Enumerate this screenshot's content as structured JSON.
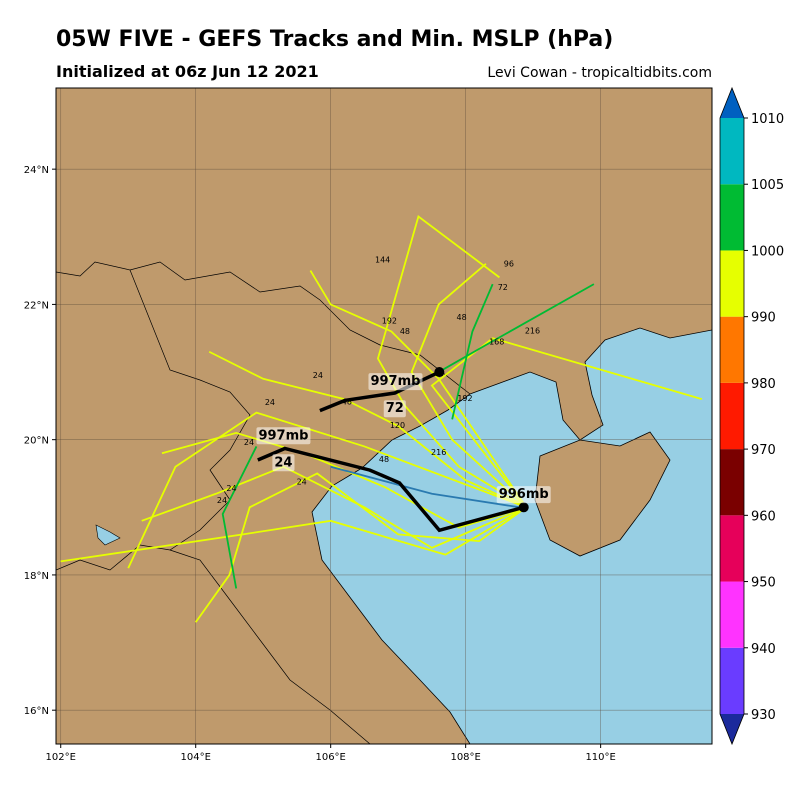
{
  "chart_data": {
    "type": "track-map",
    "title": "05W FIVE - GEFS Tracks and Min. MSLP (hPa)",
    "subtitle": "Initialized at 06z Jun 12 2021",
    "credit": "Levi Cowan - tropicaltidbits.com",
    "xlim": [
      101.93,
      111.65
    ],
    "ylim": [
      15.5,
      25.2
    ],
    "xticks": [
      {
        "value": 102,
        "label": "102°E"
      },
      {
        "value": 104,
        "label": "104°E"
      },
      {
        "value": 106,
        "label": "106°E"
      },
      {
        "value": 108,
        "label": "108°E"
      },
      {
        "value": 110,
        "label": "110°E"
      }
    ],
    "yticks": [
      {
        "value": 16,
        "label": "16°N"
      },
      {
        "value": 18,
        "label": "18°N"
      },
      {
        "value": 20,
        "label": "20°N"
      },
      {
        "value": 22,
        "label": "22°N"
      },
      {
        "value": 24,
        "label": "24°N"
      }
    ],
    "grid": true,
    "tracks": [
      {
        "color": "#e6ff00",
        "lon": [
          108.9,
          107.9,
          106.8,
          105.6,
          104.6,
          103.5
        ],
        "lat": [
          19.0,
          18.7,
          19.3,
          19.8,
          20.1,
          19.8
        ]
      },
      {
        "color": "#e6ff00",
        "lon": [
          108.9,
          107.5,
          106.5,
          105.3,
          104.3,
          103.2
        ],
        "lat": [
          19.0,
          18.4,
          19.0,
          19.6,
          19.2,
          18.8
        ]
      },
      {
        "color": "#e6ff00",
        "lon": [
          108.9,
          108.0,
          107.0,
          106.2,
          105.0,
          104.2
        ],
        "lat": [
          19.0,
          19.4,
          20.2,
          20.6,
          20.9,
          21.3
        ]
      },
      {
        "color": "#e6ff00",
        "lon": [
          108.9,
          107.8,
          107.2,
          107.6,
          108.3
        ],
        "lat": [
          19.0,
          20.0,
          21.0,
          22.0,
          22.6
        ]
      },
      {
        "color": "#e6ff00",
        "lon": [
          108.9,
          108.2,
          107.0,
          105.8,
          104.8,
          104.5,
          104.0
        ],
        "lat": [
          19.0,
          18.5,
          18.6,
          19.5,
          19.0,
          18.0,
          17.3
        ]
      },
      {
        "color": "#e6ff00",
        "lon": [
          108.9,
          107.6,
          106.9,
          106.0,
          105.7
        ],
        "lat": [
          19.0,
          20.9,
          21.6,
          22.0,
          22.5
        ]
      },
      {
        "color": "#e6ff00",
        "lon": [
          108.9,
          107.5,
          108.4,
          111.5
        ],
        "lat": [
          19.0,
          20.8,
          21.5,
          20.6
        ]
      },
      {
        "color": "#e6ff00",
        "lon": [
          108.9,
          107.7,
          106.0,
          104.7,
          102.0
        ],
        "lat": [
          19.0,
          18.3,
          18.8,
          18.6,
          18.2
        ]
      },
      {
        "color": "#e6ff00",
        "lon": [
          108.9,
          107.9,
          107.1,
          106.7,
          107.3,
          108.5
        ],
        "lat": [
          19.0,
          19.6,
          20.5,
          21.2,
          23.3,
          22.4
        ]
      },
      {
        "color": "#e6ff00",
        "lon": [
          108.9,
          106.5,
          104.9,
          103.7,
          103.0
        ],
        "lat": [
          19.0,
          19.9,
          20.4,
          19.6,
          18.1
        ]
      },
      {
        "color": "#00bb33",
        "lon": [
          107.6,
          108.3,
          109.9
        ],
        "lat": [
          21.0,
          21.4,
          22.3
        ]
      },
      {
        "color": "#00bb33",
        "lon": [
          104.9,
          104.4,
          104.6
        ],
        "lat": [
          19.9,
          18.9,
          17.8
        ]
      },
      {
        "color": "#00bb33",
        "lon": [
          107.8,
          108.1,
          108.4
        ],
        "lat": [
          20.3,
          21.6,
          22.3
        ]
      },
      {
        "color": "#2a7ab0",
        "lon": [
          106.0,
          107.5,
          108.8
        ],
        "lat": [
          19.6,
          19.2,
          19.0
        ]
      },
      {
        "color": "#000000",
        "lon": [
          108.86,
          107.61,
          107.02,
          106.58,
          105.32,
          104.92
        ],
        "lat": [
          19.0,
          18.66,
          19.36,
          19.55,
          19.87,
          19.7
        ]
      },
      {
        "color": "#000000",
        "lon": [
          107.61,
          106.95,
          106.21,
          105.84
        ],
        "lat": [
          21.0,
          20.69,
          20.58,
          20.43
        ]
      }
    ],
    "hour_labels": [
      {
        "text": "144",
        "lon": 106.77,
        "lat": 22.62
      },
      {
        "text": "96",
        "lon": 108.64,
        "lat": 22.56
      },
      {
        "text": "72",
        "lon": 108.55,
        "lat": 22.21
      },
      {
        "text": "216",
        "lon": 108.99,
        "lat": 21.57
      },
      {
        "text": "192",
        "lon": 106.87,
        "lat": 21.72
      },
      {
        "text": "48",
        "lon": 107.1,
        "lat": 21.56
      },
      {
        "text": "168",
        "lon": 108.46,
        "lat": 21.41
      },
      {
        "text": "192",
        "lon": 107.99,
        "lat": 20.57
      },
      {
        "text": "216",
        "lon": 107.6,
        "lat": 19.77
      },
      {
        "text": "48",
        "lon": 106.79,
        "lat": 19.67
      },
      {
        "text": "24",
        "lon": 105.81,
        "lat": 20.91
      },
      {
        "text": "24",
        "lon": 105.1,
        "lat": 20.51
      },
      {
        "text": "24",
        "lon": 104.79,
        "lat": 19.92
      },
      {
        "text": "24",
        "lon": 104.53,
        "lat": 19.24
      },
      {
        "text": "24",
        "lon": 104.39,
        "lat": 19.06
      },
      {
        "text": "24",
        "lon": 105.57,
        "lat": 19.34
      },
      {
        "text": "48",
        "lon": 106.24,
        "lat": 20.52
      },
      {
        "text": "120",
        "lon": 106.99,
        "lat": 20.17
      },
      {
        "text": "48",
        "lon": 107.94,
        "lat": 21.77
      }
    ],
    "callouts": [
      {
        "text": "997mb",
        "lon": 106.96,
        "lat": 20.88
      },
      {
        "text": "997mb",
        "lon": 105.3,
        "lat": 20.08
      },
      {
        "text": "996mb",
        "lon": 108.86,
        "lat": 19.21
      },
      {
        "text": "24",
        "lon": 105.3,
        "lat": 19.68
      },
      {
        "text": "72",
        "lon": 106.95,
        "lat": 20.48
      }
    ],
    "colorbar": {
      "levels": [
        930,
        940,
        950,
        960,
        970,
        980,
        990,
        1000,
        1005,
        1010
      ],
      "colors": [
        "#6a3cff",
        "#ff33ff",
        "#e6005a",
        "#7a0000",
        "#ff1a00",
        "#ff7700",
        "#e6ff00",
        "#00bb33",
        "#00b8c0"
      ],
      "under_color": "#1b2a9c",
      "over_color": "#0060c0"
    }
  }
}
